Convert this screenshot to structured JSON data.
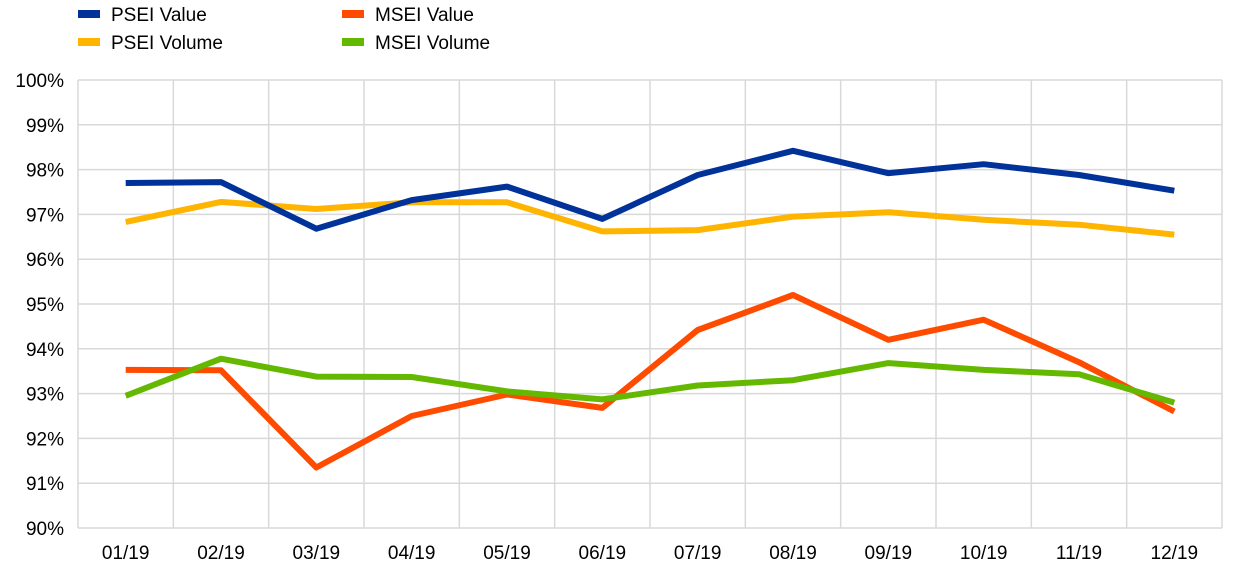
{
  "chart_data": {
    "type": "line",
    "title": "",
    "xlabel": "",
    "ylabel": "",
    "categories": [
      "01/19",
      "02/19",
      "03/19",
      "04/19",
      "05/19",
      "06/19",
      "07/19",
      "08/19",
      "09/19",
      "10/19",
      "11/19",
      "12/19"
    ],
    "ylim": [
      90,
      100
    ],
    "yticks": [
      90,
      91,
      92,
      93,
      94,
      95,
      96,
      97,
      98,
      99,
      100
    ],
    "ytick_labels": [
      "90%",
      "91%",
      "92%",
      "93%",
      "94%",
      "95%",
      "96%",
      "97%",
      "98%",
      "99%",
      "100%"
    ],
    "grid": true,
    "legend_position": "top-left",
    "series": [
      {
        "name": "PSEI Value",
        "color": "#003299",
        "values": [
          97.7,
          97.72,
          96.68,
          97.32,
          97.62,
          96.9,
          97.88,
          98.42,
          97.92,
          98.12,
          97.88,
          97.53
        ]
      },
      {
        "name": "MSEI Value",
        "color": "#ff4b00",
        "values": [
          93.53,
          93.52,
          91.35,
          92.5,
          92.98,
          92.68,
          94.42,
          95.2,
          94.2,
          94.65,
          93.7,
          92.6
        ]
      },
      {
        "name": "PSEI Volume",
        "color": "#ffb400",
        "values": [
          96.83,
          97.28,
          97.12,
          97.27,
          97.27,
          96.62,
          96.65,
          96.95,
          97.05,
          96.88,
          96.77,
          96.55
        ]
      },
      {
        "name": "MSEI Volume",
        "color": "#65b800",
        "values": [
          92.95,
          93.78,
          93.38,
          93.37,
          93.05,
          92.87,
          93.18,
          93.3,
          93.68,
          93.53,
          93.43,
          92.8
        ]
      }
    ]
  }
}
